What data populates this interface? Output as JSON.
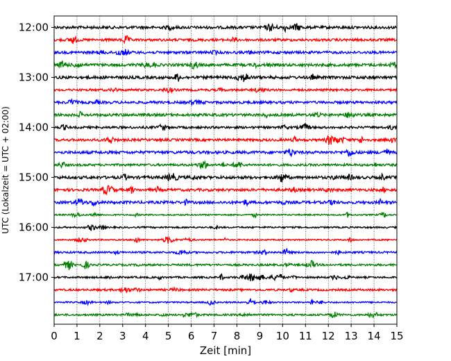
{
  "chart_data": {
    "type": "line",
    "title": "",
    "xlabel": "Zeit  [min]",
    "ylabel": "UTC (Lokalzeit = UTC + 02:00)",
    "xlim": [
      0,
      15
    ],
    "x_ticks": [
      "0",
      "1",
      "2",
      "3",
      "4",
      "5",
      "6",
      "7",
      "8",
      "9",
      "10",
      "11",
      "12",
      "13",
      "14",
      "15"
    ],
    "y_ticks": [
      "12:00",
      "13:00",
      "14:00",
      "15:00",
      "16:00",
      "17:00"
    ],
    "y_tick_hours": [
      12,
      13,
      14,
      15,
      16,
      17
    ],
    "row_start_hour": 12,
    "row_interval_minutes": 15,
    "row_count": 24,
    "row_colors": [
      "#000000",
      "#ff0000",
      "#0000ff",
      "#008000"
    ],
    "grid": "vertical dotted",
    "legend": "none"
  }
}
